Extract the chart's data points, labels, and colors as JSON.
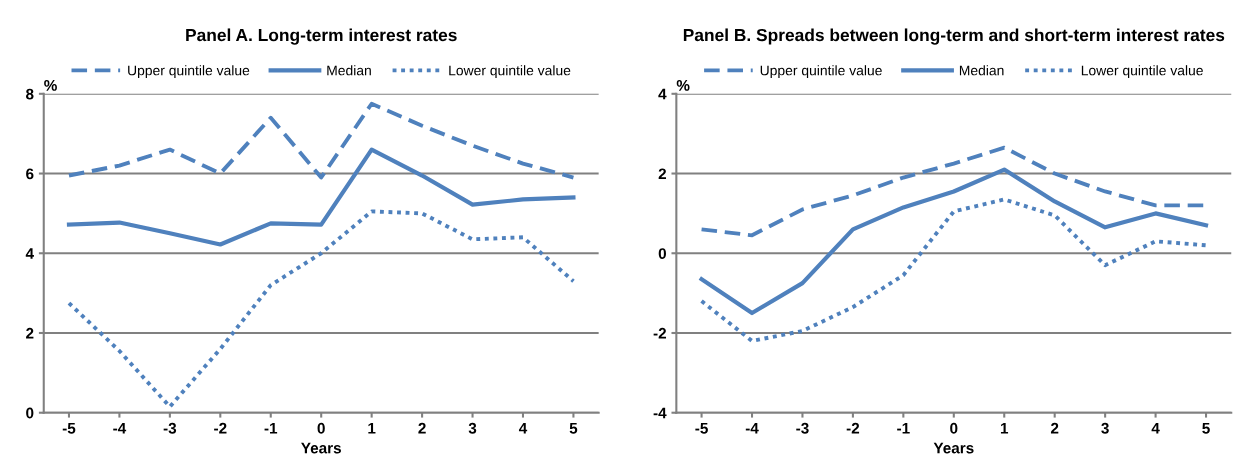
{
  "chart_data": [
    {
      "type": "line",
      "title": "Panel A. Long-term interest rates",
      "xlabel": "Years",
      "ylabel": "%",
      "categories": [
        "-5",
        "-4",
        "-3",
        "-2",
        "-1",
        "0",
        "1",
        "2",
        "3",
        "4",
        "5"
      ],
      "ylim": [
        0,
        8
      ],
      "yticks": [
        0,
        2,
        4,
        6,
        8
      ],
      "grid": "y",
      "legend": "top",
      "marker": "none",
      "series": [
        {
          "name": "Upper quintile value",
          "color": "#4f81bd",
          "line_style": "dashed",
          "values": [
            5.95,
            6.2,
            6.6,
            6.0,
            7.4,
            5.9,
            7.75,
            7.2,
            6.7,
            6.25,
            5.9
          ]
        },
        {
          "name": "Median",
          "color": "#4f81bd",
          "line_style": "solid",
          "values": [
            4.72,
            4.77,
            4.5,
            4.22,
            4.75,
            4.72,
            6.6,
            5.95,
            5.22,
            5.35,
            5.4
          ]
        },
        {
          "name": "Lower quintile value",
          "color": "#4f81bd",
          "line_style": "dotted",
          "values": [
            2.75,
            1.55,
            0.15,
            1.6,
            3.2,
            4.0,
            5.05,
            5.0,
            4.35,
            4.4,
            3.3
          ]
        }
      ]
    },
    {
      "type": "line",
      "title": "Panel B. Spreads between long-term and short-term interest rates",
      "xlabel": "Years",
      "ylabel": "%",
      "categories": [
        "-5",
        "-4",
        "-3",
        "-2",
        "-1",
        "0",
        "1",
        "2",
        "3",
        "4",
        "5"
      ],
      "ylim": [
        -4,
        4
      ],
      "yticks": [
        -4,
        -2,
        0,
        2,
        4
      ],
      "grid": "y",
      "legend": "top",
      "marker": "none",
      "series": [
        {
          "name": "Upper quintile value",
          "color": "#4f81bd",
          "line_style": "dashed",
          "values": [
            0.6,
            0.45,
            1.1,
            1.45,
            1.9,
            2.25,
            2.65,
            2.0,
            1.55,
            1.2,
            1.2
          ]
        },
        {
          "name": "Median",
          "color": "#4f81bd",
          "line_style": "solid",
          "values": [
            -0.65,
            -1.5,
            -0.75,
            0.6,
            1.15,
            1.55,
            2.1,
            1.3,
            0.65,
            1.0,
            0.7
          ]
        },
        {
          "name": "Lower quintile value",
          "color": "#4f81bd",
          "line_style": "dotted",
          "values": [
            -1.2,
            -2.2,
            -1.95,
            -1.35,
            -0.55,
            1.05,
            1.35,
            0.95,
            -0.3,
            0.3,
            0.2
          ]
        }
      ]
    }
  ]
}
